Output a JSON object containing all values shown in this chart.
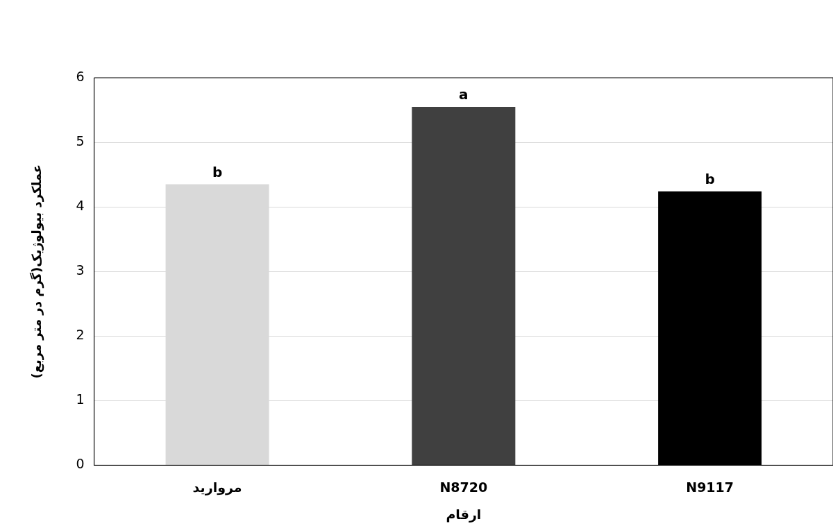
{
  "chart_data": {
    "type": "bar",
    "xlabel": "ارقام",
    "ylabel": "عملکرد بیولوژیک(گرم در متر مربع)",
    "categories": [
      "مروارید",
      "N8720",
      "N9117"
    ],
    "values": [
      4.35,
      5.55,
      4.24
    ],
    "colors": [
      "#d9d9d9",
      "#404040",
      "#000000"
    ],
    "ylim": [
      0,
      6
    ],
    "yticks": [
      0,
      1,
      2,
      3,
      4,
      5,
      6
    ],
    "grid": "y",
    "legend": false,
    "annotations": [
      {
        "text": "b",
        "x": "مروارید",
        "y": 4.35
      },
      {
        "text": "a",
        "x": "N8720",
        "y": 5.55
      },
      {
        "text": "b",
        "x": "N9117",
        "y": 4.24
      }
    ]
  }
}
